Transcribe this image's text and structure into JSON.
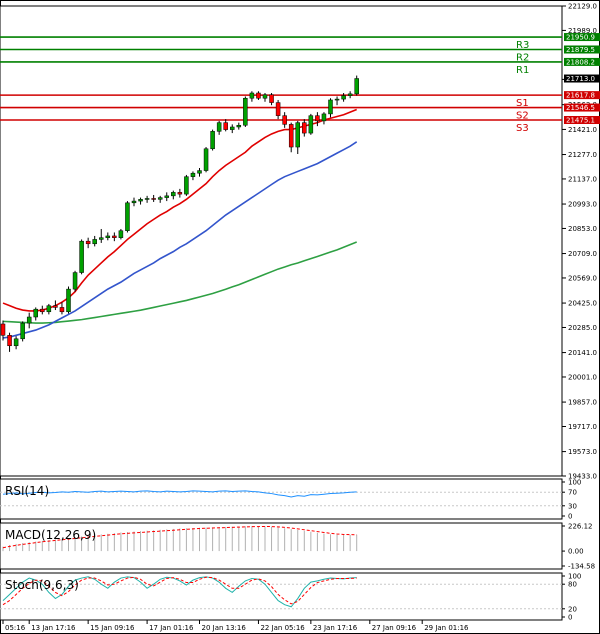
{
  "chart_data": {
    "type": "candlestick",
    "title": "",
    "colors": {
      "up": "#00a000",
      "down": "#ff0000",
      "wick": "#000000",
      "ma_fast": "#e00000",
      "ma_mid": "#3355cc",
      "ma_slow": "#2ea043",
      "resistance": "#008000",
      "support": "#d00000",
      "grid": "#c8c8c8"
    },
    "price_axis": {
      "ylim": [
        19433.0,
        22129.0
      ],
      "ticks": [
        "22129.0",
        "21989.0",
        "21708.0",
        "21563.0",
        "21421.0",
        "21277.0",
        "21137.0",
        "20993.0",
        "20853.0",
        "20709.0",
        "20569.0",
        "20425.0",
        "20285.0",
        "20141.0",
        "20001.0",
        "19857.0",
        "19717.0",
        "19573.0",
        "19433.0"
      ],
      "tick_values": [
        22129.0,
        21989.0,
        21708.0,
        21563.0,
        21421.0,
        21277.0,
        21137.0,
        20993.0,
        20853.0,
        20709.0,
        20569.0,
        20425.0,
        20285.0,
        20141.0,
        20001.0,
        19857.0,
        19717.0,
        19573.0,
        19433.0
      ]
    },
    "levels": [
      {
        "name": "R3",
        "value": 21950.9,
        "label": "21950.9",
        "kind": "resistance"
      },
      {
        "name": "R2",
        "value": 21879.5,
        "label": "21879.5",
        "kind": "resistance"
      },
      {
        "name": "R1",
        "value": 21808.2,
        "label": "21808.2",
        "kind": "resistance"
      },
      {
        "name": "S1",
        "value": 21617.8,
        "label": "21617.8",
        "kind": "support"
      },
      {
        "name": "S2",
        "value": 21546.5,
        "label": "21546.5",
        "kind": "support"
      },
      {
        "name": "S3",
        "value": 21475.1,
        "label": "21475.1",
        "kind": "support"
      }
    ],
    "current_price": {
      "value": 21713.0,
      "label": "21713.0"
    },
    "x_ticks": [
      "05:16",
      "13 Jan 17:16",
      "15 Jan 09:16",
      "17 Jan 01:16",
      "20 Jan 13:16",
      "22 Jan 05:16",
      "23 Jan 17:16",
      "27 Jan 09:16",
      "29 Jan 01:16"
    ],
    "x_tick_index": [
      0,
      4,
      13,
      22,
      30,
      39,
      47,
      56,
      64
    ],
    "candles": [
      {
        "o": 20305,
        "h": 20325,
        "l": 20210,
        "c": 20240
      },
      {
        "o": 20240,
        "h": 20255,
        "l": 20145,
        "c": 20180
      },
      {
        "o": 20180,
        "h": 20235,
        "l": 20160,
        "c": 20220
      },
      {
        "o": 20220,
        "h": 20320,
        "l": 20205,
        "c": 20310
      },
      {
        "o": 20310,
        "h": 20370,
        "l": 20280,
        "c": 20345
      },
      {
        "o": 20345,
        "h": 20400,
        "l": 20325,
        "c": 20390
      },
      {
        "o": 20390,
        "h": 20410,
        "l": 20360,
        "c": 20375
      },
      {
        "o": 20375,
        "h": 20420,
        "l": 20360,
        "c": 20410
      },
      {
        "o": 20410,
        "h": 20440,
        "l": 20385,
        "c": 20400
      },
      {
        "o": 20400,
        "h": 20430,
        "l": 20360,
        "c": 20375
      },
      {
        "o": 20375,
        "h": 20520,
        "l": 20365,
        "c": 20505
      },
      {
        "o": 20505,
        "h": 20610,
        "l": 20490,
        "c": 20600
      },
      {
        "o": 20600,
        "h": 20790,
        "l": 20590,
        "c": 20780
      },
      {
        "o": 20780,
        "h": 20800,
        "l": 20740,
        "c": 20765
      },
      {
        "o": 20765,
        "h": 20810,
        "l": 20750,
        "c": 20790
      },
      {
        "o": 20790,
        "h": 20850,
        "l": 20770,
        "c": 20800
      },
      {
        "o": 20800,
        "h": 20830,
        "l": 20785,
        "c": 20810
      },
      {
        "o": 20810,
        "h": 20830,
        "l": 20780,
        "c": 20800
      },
      {
        "o": 20800,
        "h": 20850,
        "l": 20790,
        "c": 20840
      },
      {
        "o": 20840,
        "h": 21010,
        "l": 20830,
        "c": 21000
      },
      {
        "o": 21000,
        "h": 21030,
        "l": 20980,
        "c": 21010
      },
      {
        "o": 21010,
        "h": 21030,
        "l": 20990,
        "c": 21020
      },
      {
        "o": 21020,
        "h": 21040,
        "l": 21000,
        "c": 21025
      },
      {
        "o": 21025,
        "h": 21045,
        "l": 21005,
        "c": 21020
      },
      {
        "o": 21020,
        "h": 21040,
        "l": 21000,
        "c": 21030
      },
      {
        "o": 21030,
        "h": 21060,
        "l": 21010,
        "c": 21040
      },
      {
        "o": 21040,
        "h": 21070,
        "l": 21020,
        "c": 21060
      },
      {
        "o": 21060,
        "h": 21080,
        "l": 21030,
        "c": 21050
      },
      {
        "o": 21050,
        "h": 21160,
        "l": 21040,
        "c": 21150
      },
      {
        "o": 21150,
        "h": 21180,
        "l": 21130,
        "c": 21170
      },
      {
        "o": 21170,
        "h": 21200,
        "l": 21150,
        "c": 21185
      },
      {
        "o": 21185,
        "h": 21320,
        "l": 21175,
        "c": 21310
      },
      {
        "o": 21310,
        "h": 21420,
        "l": 21300,
        "c": 21410
      },
      {
        "o": 21410,
        "h": 21470,
        "l": 21390,
        "c": 21460
      },
      {
        "o": 21460,
        "h": 21480,
        "l": 21410,
        "c": 21420
      },
      {
        "o": 21420,
        "h": 21450,
        "l": 21400,
        "c": 21435
      },
      {
        "o": 21435,
        "h": 21460,
        "l": 21420,
        "c": 21445
      },
      {
        "o": 21445,
        "h": 21610,
        "l": 21435,
        "c": 21600
      },
      {
        "o": 21600,
        "h": 21640,
        "l": 21580,
        "c": 21630
      },
      {
        "o": 21630,
        "h": 21640,
        "l": 21590,
        "c": 21600
      },
      {
        "o": 21600,
        "h": 21630,
        "l": 21580,
        "c": 21620
      },
      {
        "o": 21620,
        "h": 21630,
        "l": 21560,
        "c": 21575
      },
      {
        "o": 21575,
        "h": 21590,
        "l": 21480,
        "c": 21500
      },
      {
        "o": 21500,
        "h": 21520,
        "l": 21430,
        "c": 21450
      },
      {
        "o": 21450,
        "h": 21460,
        "l": 21290,
        "c": 21320
      },
      {
        "o": 21320,
        "h": 21470,
        "l": 21280,
        "c": 21460
      },
      {
        "o": 21460,
        "h": 21480,
        "l": 21380,
        "c": 21400
      },
      {
        "o": 21400,
        "h": 21510,
        "l": 21390,
        "c": 21500
      },
      {
        "o": 21500,
        "h": 21520,
        "l": 21440,
        "c": 21470
      },
      {
        "o": 21470,
        "h": 21520,
        "l": 21450,
        "c": 21510
      },
      {
        "o": 21510,
        "h": 21600,
        "l": 21490,
        "c": 21590
      },
      {
        "o": 21590,
        "h": 21610,
        "l": 21560,
        "c": 21595
      },
      {
        "o": 21595,
        "h": 21630,
        "l": 21580,
        "c": 21615
      },
      {
        "o": 21615,
        "h": 21640,
        "l": 21600,
        "c": 21625
      },
      {
        "o": 21625,
        "h": 21730,
        "l": 21615,
        "c": 21713
      }
    ],
    "ma_fast": [
      20425,
      20410,
      20395,
      20385,
      20380,
      20380,
      20385,
      20395,
      20410,
      20430,
      20455,
      20490,
      20540,
      20585,
      20620,
      20655,
      20690,
      20720,
      20755,
      20790,
      20820,
      20850,
      20880,
      20905,
      20930,
      20950,
      20975,
      20995,
      21020,
      21050,
      21080,
      21110,
      21150,
      21185,
      21215,
      21240,
      21265,
      21290,
      21325,
      21350,
      21375,
      21395,
      21410,
      21420,
      21420,
      21430,
      21440,
      21450,
      21460,
      21475,
      21485,
      21495,
      21505,
      21520,
      21535
    ],
    "ma_mid": [
      20225,
      20230,
      20240,
      20250,
      20260,
      20270,
      20285,
      20300,
      20320,
      20340,
      20360,
      20380,
      20405,
      20430,
      20455,
      20480,
      20505,
      20525,
      20545,
      20570,
      20595,
      20615,
      20635,
      20655,
      20680,
      20700,
      20720,
      20745,
      20765,
      20790,
      20815,
      20840,
      20870,
      20900,
      20930,
      20955,
      20980,
      21005,
      21030,
      21055,
      21080,
      21105,
      21130,
      21150,
      21165,
      21180,
      21195,
      21210,
      21225,
      21245,
      21265,
      21285,
      21305,
      21325,
      21350
    ],
    "ma_slow": [
      20320,
      20318,
      20316,
      20314,
      20312,
      20310,
      20310,
      20312,
      20314,
      20318,
      20322,
      20326,
      20330,
      20336,
      20342,
      20348,
      20354,
      20360,
      20366,
      20372,
      20378,
      20384,
      20392,
      20400,
      20408,
      20416,
      20424,
      20432,
      20440,
      20450,
      20460,
      20470,
      20480,
      20492,
      20504,
      20518,
      20530,
      20545,
      20560,
      20575,
      20590,
      20605,
      20620,
      20632,
      20645,
      20655,
      20668,
      20680,
      20692,
      20705,
      20718,
      20730,
      20745,
      20760,
      20775
    ],
    "panels": [
      {
        "title": "RSI(14)",
        "ylim": [
          0,
          100
        ],
        "ticks": [
          "100",
          "70",
          "30",
          "0"
        ],
        "tick_values": [
          100,
          70,
          30,
          0
        ],
        "series": [
          64,
          66,
          68,
          65,
          67,
          69,
          70,
          68,
          69,
          71,
          70,
          72,
          71,
          70,
          72,
          73,
          71,
          72,
          73,
          72,
          71,
          73,
          74,
          72,
          71,
          73,
          72,
          71,
          72,
          74,
          73,
          72,
          71,
          73,
          74,
          72,
          73,
          74,
          72,
          71,
          68,
          66,
          62,
          60,
          56,
          60,
          58,
          63,
          62,
          64,
          66,
          67,
          68,
          70,
          71
        ]
      },
      {
        "title": "MACD(12,26,9)",
        "ylim": [
          -134.58,
          226.12
        ],
        "ticks": [
          "226.12",
          "0.00",
          "-134.58"
        ],
        "tick_values": [
          226.12,
          0,
          -134.58
        ],
        "histogram": [
          40,
          55,
          65,
          72,
          80,
          86,
          92,
          98,
          104,
          110,
          118,
          124,
          132,
          138,
          144,
          150,
          156,
          162,
          168,
          172,
          176,
          180,
          184,
          188,
          192,
          196,
          200,
          204,
          206,
          208,
          210,
          212,
          214,
          216,
          218,
          220,
          222,
          224,
          225,
          226,
          224,
          220,
          214,
          206,
          198,
          190,
          182,
          174,
          166,
          158,
          152,
          148,
          146,
          146,
          148
        ],
        "signal": [
          30,
          42,
          52,
          60,
          68,
          76,
          84,
          90,
          96,
          102,
          108,
          114,
          120,
          126,
          132,
          138,
          144,
          150,
          156,
          160,
          164,
          168,
          172,
          176,
          180,
          184,
          188,
          192,
          196,
          200,
          204,
          206,
          208,
          210,
          212,
          214,
          216,
          218,
          220,
          221,
          222,
          221,
          218,
          214,
          208,
          200,
          192,
          184,
          176,
          168,
          160,
          154,
          150,
          148,
          147
        ]
      },
      {
        "title": "Stoch(9,6,3)",
        "ylim": [
          0,
          100
        ],
        "ticks": [
          "100",
          "80",
          "20",
          "0"
        ],
        "tick_values": [
          100,
          80,
          20,
          0
        ],
        "main": [
          40,
          55,
          70,
          85,
          95,
          90,
          80,
          60,
          45,
          55,
          75,
          90,
          95,
          98,
          92,
          80,
          70,
          85,
          95,
          98,
          96,
          85,
          70,
          80,
          92,
          97,
          95,
          88,
          78,
          90,
          96,
          98,
          95,
          85,
          70,
          60,
          75,
          88,
          94,
          92,
          80,
          60,
          40,
          30,
          25,
          45,
          70,
          85,
          88,
          92,
          95,
          94,
          93,
          95,
          96
        ],
        "signal": [
          30,
          40,
          55,
          70,
          82,
          90,
          88,
          75,
          60,
          52,
          62,
          78,
          90,
          95,
          95,
          88,
          78,
          80,
          88,
          95,
          97,
          92,
          80,
          76,
          85,
          94,
          96,
          92,
          84,
          84,
          92,
          97,
          96,
          90,
          80,
          70,
          70,
          80,
          90,
          93,
          88,
          74,
          55,
          42,
          32,
          38,
          55,
          72,
          84,
          88,
          92,
          94,
          94,
          94,
          95
        ]
      }
    ]
  }
}
